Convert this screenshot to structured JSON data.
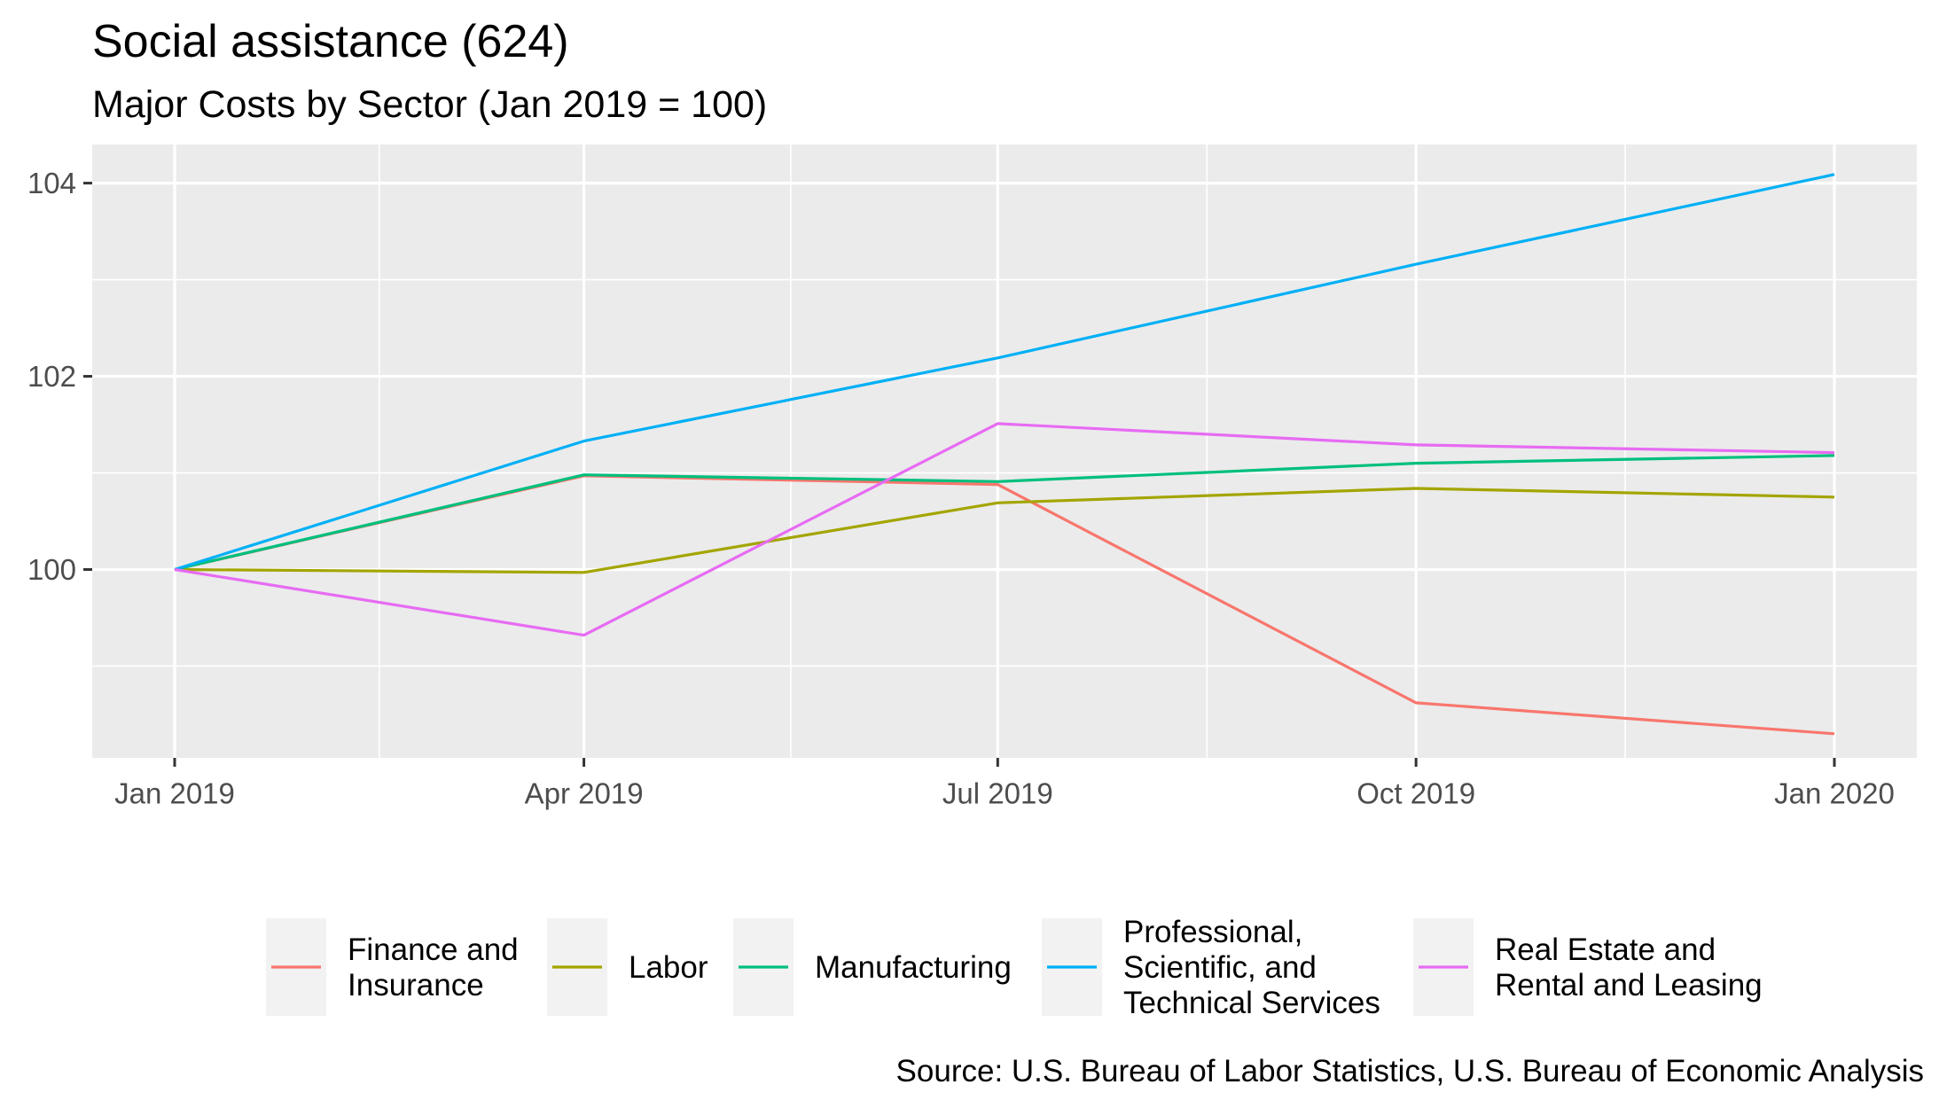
{
  "chart_data": {
    "type": "line",
    "title": "Social assistance (624)",
    "subtitle": "Major Costs by Sector (Jan 2019 = 100)",
    "caption": "Source: U.S. Bureau of Labor Statistics, U.S. Bureau of Economic Analysis",
    "xlabel": "",
    "ylabel": "",
    "x": [
      "2019-01-01",
      "2019-04-01",
      "2019-07-01",
      "2019-10-01",
      "2020-01-01"
    ],
    "x_tick_labels": [
      "Jan 2019",
      "Apr 2019",
      "Jul 2019",
      "Oct 2019",
      "Jan 2020"
    ],
    "y_ticks": [
      100,
      102,
      104
    ],
    "ylim": [
      98.05,
      104.4
    ],
    "grid": true,
    "legend_position": "bottom",
    "series": [
      {
        "name": "Finance and Insurance",
        "color": "#F8766D",
        "values": [
          100,
          100.97,
          100.88,
          98.62,
          98.3
        ]
      },
      {
        "name": "Labor",
        "color": "#A3A500",
        "values": [
          100,
          99.97,
          100.69,
          100.84,
          100.75
        ]
      },
      {
        "name": "Manufacturing",
        "color": "#00BF7D",
        "values": [
          100,
          100.98,
          100.91,
          101.1,
          101.18
        ]
      },
      {
        "name": "Professional, Scientific, and Technical Services",
        "color": "#00B0F6",
        "values": [
          100,
          101.33,
          102.19,
          103.16,
          104.09
        ]
      },
      {
        "name": "Real Estate and Rental and Leasing",
        "color": "#E76BF3",
        "values": [
          100,
          99.32,
          101.51,
          101.29,
          101.21
        ]
      }
    ]
  },
  "legend": {
    "items": [
      {
        "lines": [
          "Finance and",
          "Insurance"
        ]
      },
      {
        "lines": [
          "Labor"
        ]
      },
      {
        "lines": [
          "Manufacturing"
        ]
      },
      {
        "lines": [
          "Professional,",
          "Scientific, and",
          "Technical Services"
        ]
      },
      {
        "lines": [
          "Real Estate and",
          "Rental and Leasing"
        ]
      }
    ]
  }
}
